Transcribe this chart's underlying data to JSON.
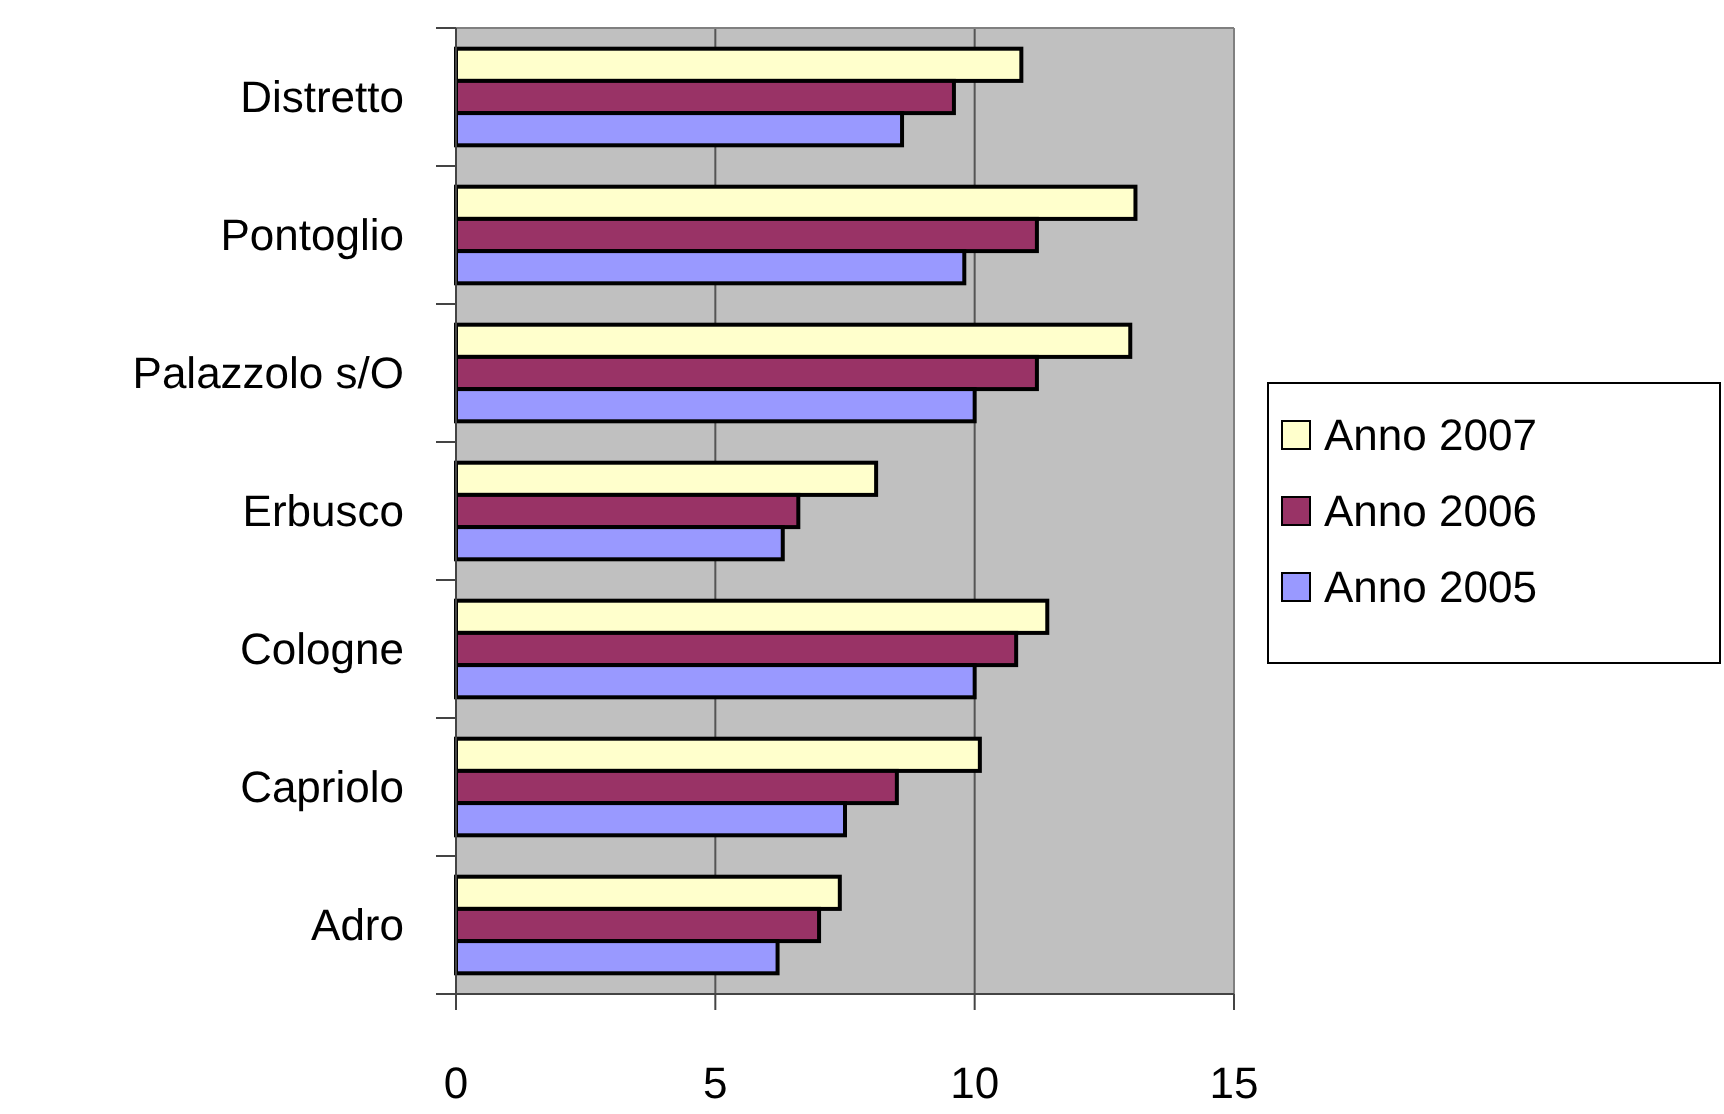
{
  "chart_data": {
    "type": "bar",
    "orientation": "horizontal",
    "categories": [
      "Distretto",
      "Pontoglio",
      "Palazzolo s/O",
      "Erbusco",
      "Cologne",
      "Capriolo",
      "Adro"
    ],
    "series": [
      {
        "name": "Anno 2007",
        "color": "#ffffcc",
        "values": [
          10.9,
          13.1,
          13.0,
          8.1,
          11.4,
          10.1,
          7.4
        ]
      },
      {
        "name": "Anno 2006",
        "color": "#993366",
        "values": [
          9.6,
          11.2,
          11.2,
          6.6,
          10.8,
          8.5,
          7.0
        ]
      },
      {
        "name": "Anno 2005",
        "color": "#9999ff",
        "values": [
          8.6,
          9.8,
          10.0,
          6.3,
          10.0,
          7.5,
          6.2
        ]
      }
    ],
    "xlim": [
      0,
      15
    ],
    "xticks": [
      0,
      5,
      10,
      15
    ],
    "grid": "x",
    "legend": "right"
  }
}
